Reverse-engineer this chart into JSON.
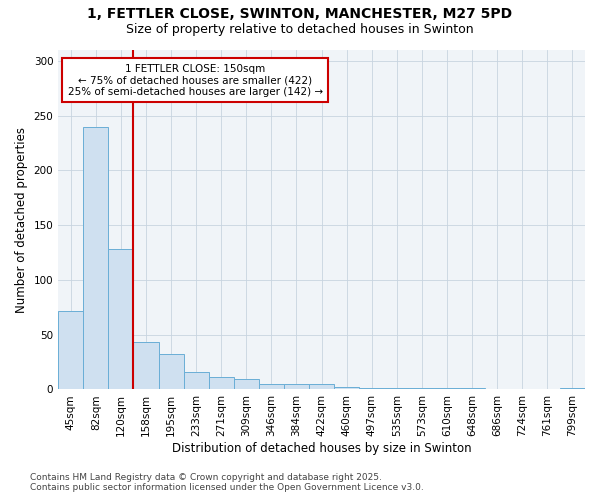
{
  "title_line1": "1, FETTLER CLOSE, SWINTON, MANCHESTER, M27 5PD",
  "title_line2": "Size of property relative to detached houses in Swinton",
  "xlabel": "Distribution of detached houses by size in Swinton",
  "ylabel": "Number of detached properties",
  "categories": [
    "45sqm",
    "82sqm",
    "120sqm",
    "158sqm",
    "195sqm",
    "233sqm",
    "271sqm",
    "309sqm",
    "346sqm",
    "384sqm",
    "422sqm",
    "460sqm",
    "497sqm",
    "535sqm",
    "573sqm",
    "610sqm",
    "648sqm",
    "686sqm",
    "724sqm",
    "761sqm",
    "799sqm"
  ],
  "values": [
    72,
    240,
    128,
    43,
    32,
    16,
    11,
    10,
    5,
    5,
    5,
    2,
    1,
    1,
    1,
    1,
    1,
    0,
    0,
    0,
    1
  ],
  "bar_color": "#cfe0f0",
  "bar_edge_color": "#6aaed6",
  "grid_color": "#c8d4e0",
  "background_color": "#ffffff",
  "axes_bg_color": "#f0f4f8",
  "vline_color": "#cc0000",
  "annotation_text": "1 FETTLER CLOSE: 150sqm\n← 75% of detached houses are smaller (422)\n25% of semi-detached houses are larger (142) →",
  "annotation_box_color": "#cc0000",
  "footer_line1": "Contains HM Land Registry data © Crown copyright and database right 2025.",
  "footer_line2": "Contains public sector information licensed under the Open Government Licence v3.0.",
  "ylim": [
    0,
    310
  ],
  "yticks": [
    0,
    50,
    100,
    150,
    200,
    250,
    300
  ],
  "title1_fontsize": 10,
  "title2_fontsize": 9,
  "tick_fontsize": 7.5,
  "label_fontsize": 8.5,
  "footer_fontsize": 6.5
}
